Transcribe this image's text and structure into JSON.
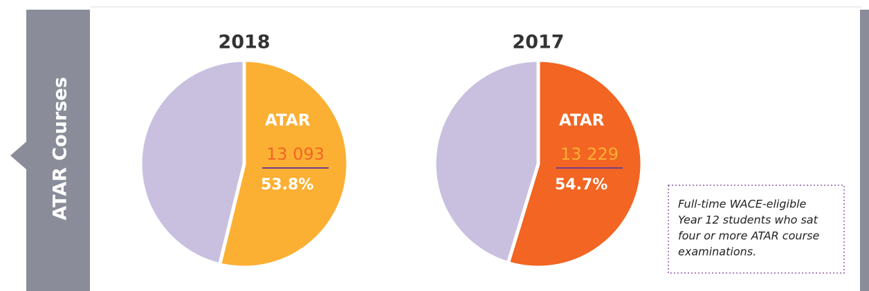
{
  "sidebar_label": "ATAR Courses",
  "note": [
    "Full-time WACE-eligible",
    "Year 12 students who sat",
    "four or more ATAR course",
    "examinations."
  ],
  "chart_data": [
    {
      "type": "pie",
      "title": "2018",
      "categories": [
        "ATAR",
        null
      ],
      "values": [
        53.8,
        46.2
      ],
      "value_labels": [
        "53.8%",
        null
      ],
      "colors": [
        "#fbb034",
        "#c9c0e0"
      ],
      "count": {
        "value": 13093,
        "label": "13 093"
      },
      "count_color": "#f26522"
    },
    {
      "type": "pie",
      "title": "2017",
      "categories": [
        "ATAR",
        null
      ],
      "values": [
        54.7,
        45.3
      ],
      "value_labels": [
        "54.7%",
        null
      ],
      "colors": [
        "#f26522",
        "#c9c0e0"
      ],
      "count": {
        "value": 13229,
        "label": "13 229"
      },
      "count_color": "#fbb034"
    }
  ]
}
